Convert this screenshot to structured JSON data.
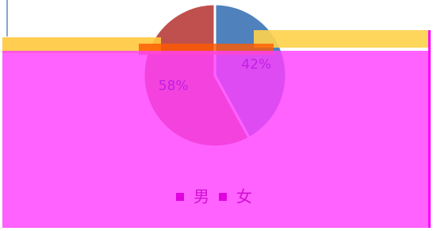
{
  "chart_data": {
    "type": "pie",
    "categories": [
      "男",
      "女"
    ],
    "values": [
      42,
      58
    ],
    "value_labels": [
      "42%",
      "58%"
    ],
    "colors": [
      "#4f81bd",
      "#c0504d"
    ],
    "legend": "bottom"
  }
}
